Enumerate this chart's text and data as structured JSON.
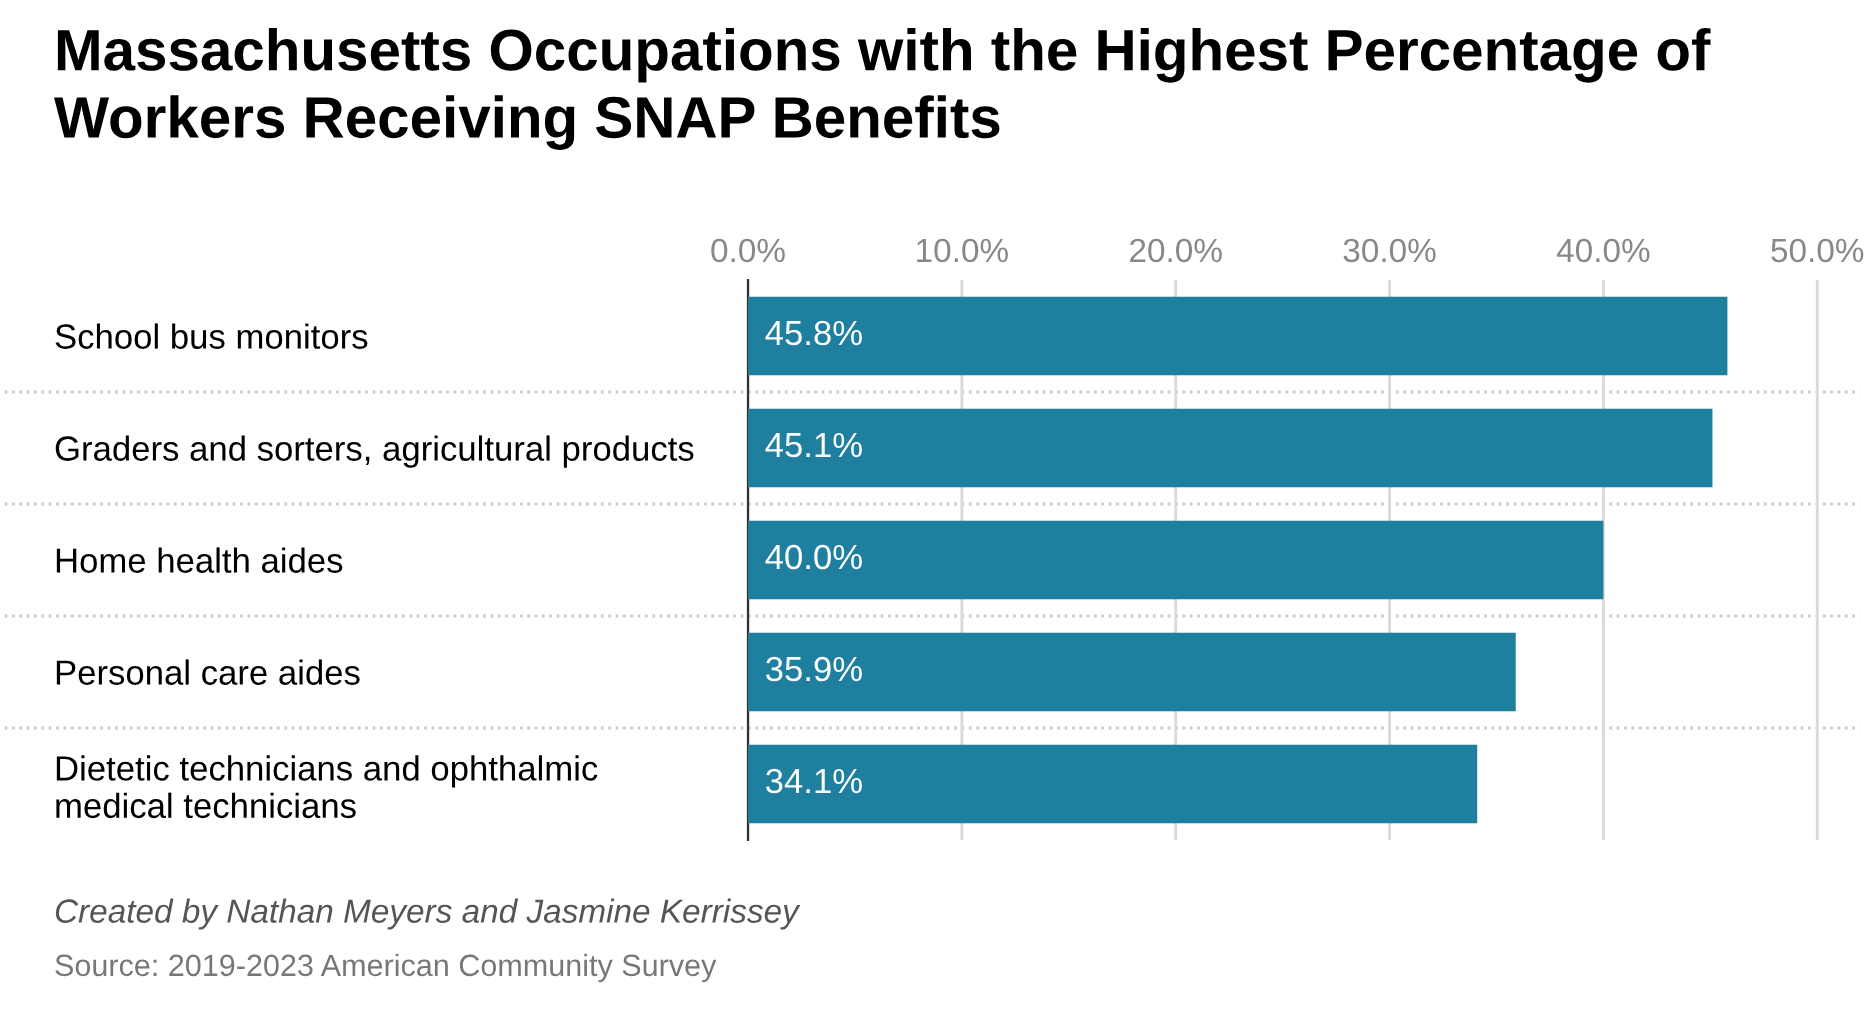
{
  "chart_data": {
    "type": "bar",
    "orientation": "horizontal",
    "title": "Massachusetts Occupations with the Highest Percentage of\nWorkers Receiving SNAP Benefits",
    "categories": [
      "School bus monitors",
      "Graders and sorters, agricultural products",
      "Home health aides",
      "Personal care aides",
      "Dietetic technicians and ophthalmic\nmedical technicians"
    ],
    "values": [
      45.8,
      45.1,
      40.0,
      35.9,
      34.1
    ],
    "color": "#1f7f9e",
    "value_labels": [
      "45.8%",
      "45.1%",
      "40.0%",
      "35.9%",
      "34.1%"
    ],
    "xlim": [
      0,
      52
    ],
    "xticks": [
      {
        "value": 0,
        "label": "0.0%"
      },
      {
        "value": 10,
        "label": "10.0%"
      },
      {
        "value": 20,
        "label": "20.0%"
      },
      {
        "value": 30,
        "label": "30.0%"
      },
      {
        "value": 40,
        "label": "40.0%"
      },
      {
        "value": 50,
        "label": "50.0%"
      }
    ],
    "grid": "x",
    "annotations": [
      "Created by Nathan Meyers and Jasmine Kerrissey",
      "Source: 2019-2023 American Community Survey"
    ]
  }
}
